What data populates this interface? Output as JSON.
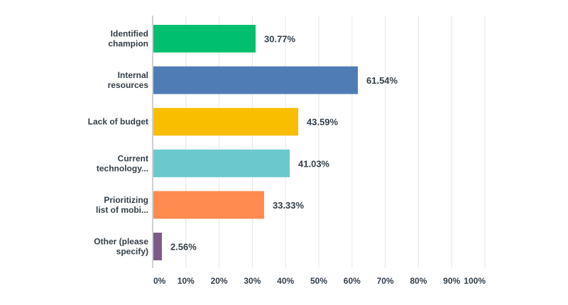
{
  "chart_data": {
    "type": "bar",
    "orientation": "horizontal",
    "categories": [
      [
        "Identified",
        "champion"
      ],
      [
        "Internal",
        "resources"
      ],
      [
        "Lack of budget"
      ],
      [
        "Current",
        "technology..."
      ],
      [
        "Prioritizing",
        "list of mobi..."
      ],
      [
        "Other (please",
        "specify)"
      ]
    ],
    "values": [
      30.77,
      61.54,
      43.59,
      41.03,
      33.33,
      2.56
    ],
    "value_labels": [
      "30.77%",
      "61.54%",
      "43.59%",
      "41.03%",
      "33.33%",
      "2.56%"
    ],
    "colors": [
      "#00bf6f",
      "#507cb6",
      "#f9be00",
      "#6bc8cd",
      "#ff8b4f",
      "#7d5b89"
    ],
    "xlim": [
      0,
      100
    ],
    "ticks": [
      0,
      10,
      20,
      30,
      40,
      50,
      60,
      70,
      80,
      90,
      100
    ],
    "tick_labels": [
      "0%",
      "10%",
      "20%",
      "30%",
      "40%",
      "50%",
      "60%",
      "70%",
      "80%",
      "90%",
      "100%"
    ],
    "grid": true,
    "title": "",
    "xlabel": "",
    "ylabel": ""
  }
}
